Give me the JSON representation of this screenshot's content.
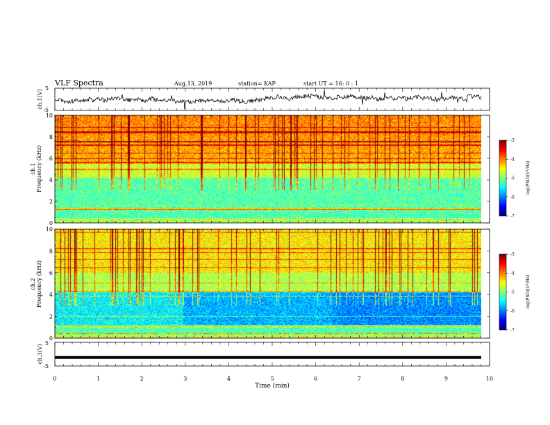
{
  "header": {
    "title": "VLF Spectra",
    "date": "Aug.13, 2019",
    "station": "station= KAP",
    "start": "start  UT =   16: 0  : 1"
  },
  "chart_data": [
    {
      "type": "line",
      "name": "ch1-waveform",
      "ylabel": "ch.1(V)",
      "ylim": [
        -5,
        5
      ],
      "yticks": [
        "5",
        "-5"
      ],
      "xlim": [
        0,
        10
      ]
    },
    {
      "type": "heatmap",
      "name": "ch1-spectrogram",
      "ylabel_line1": "ch.1",
      "ylabel_line2": "Frequency  (kHz)",
      "ylim": [
        0,
        10
      ],
      "yticks": [
        "0",
        "2",
        "4",
        "6",
        "8",
        "10"
      ],
      "xlim": [
        0,
        10
      ],
      "colorbar": {
        "label": "log(PSD)(V²/Hz)",
        "range": [
          -7,
          -3
        ],
        "ticks": [
          "-3",
          "-4",
          "-5",
          "-6",
          "-7"
        ]
      }
    },
    {
      "type": "heatmap",
      "name": "ch2-spectrogram",
      "ylabel_line1": "ch.2",
      "ylabel_line2": "Frequency  (kHz)",
      "ylim": [
        0,
        10
      ],
      "yticks": [
        "0",
        "2",
        "4",
        "6",
        "8",
        "10"
      ],
      "xlim": [
        0,
        10
      ],
      "colorbar": {
        "label": "log(PSD)(V²/Hz)",
        "range": [
          -7,
          -3
        ],
        "ticks": [
          "-3",
          "-4",
          "-5",
          "-6",
          "-7"
        ]
      }
    },
    {
      "type": "line",
      "name": "ch3-waveform",
      "ylabel": "ch.3(V)",
      "ylim": [
        -5,
        5
      ],
      "yticks": [
        "5",
        "0",
        "-5"
      ],
      "xlim": [
        0,
        10
      ],
      "value": -1.4
    }
  ],
  "xaxis": {
    "label": "Time  (min)",
    "ticks": [
      "0",
      "1",
      "2",
      "3",
      "4",
      "5",
      "6",
      "7",
      "8",
      "9",
      "10"
    ]
  }
}
